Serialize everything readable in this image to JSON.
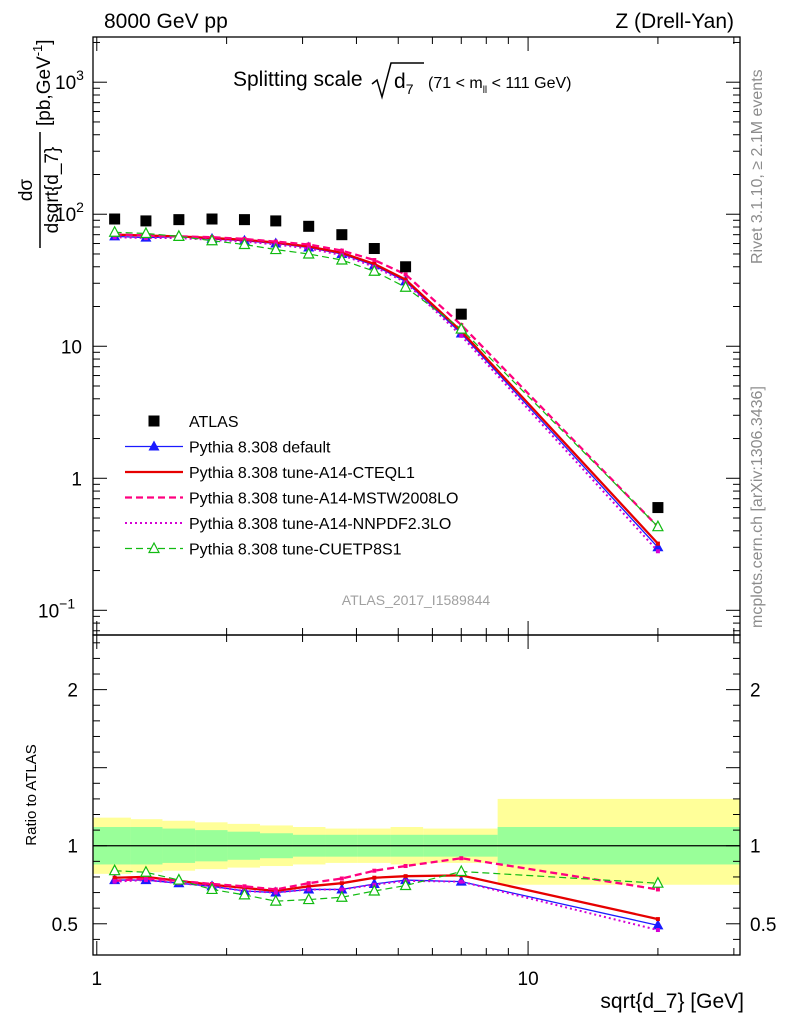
{
  "header": {
    "left": "8000 GeV pp",
    "right": "Z (Drell-Yan)"
  },
  "side_labels": {
    "top": "Rivet 3.1.10, ≥ 2.1M events",
    "bottom": "mcplots.cern.ch [arXiv:1306.3436]"
  },
  "chart_data": {
    "type": "line",
    "title": {
      "main": "Splitting scale",
      "symbol": "d",
      "subscript": "7",
      "suffix": "(71 < m",
      "suffix_sub": "ll",
      "suffix_end": " < 111 GeV)"
    },
    "watermark": "ATLAS_2017_I1589844",
    "xlabel": "sqrt{d_7} [GeV]",
    "ylabel_main": {
      "numerator": "dσ",
      "denominator": "dsqrt{d_7}",
      "units": "[pb,GeV",
      "units_exp": "-1",
      "units_end": "]"
    },
    "ylabel_ratio": "Ratio to ATLAS",
    "x_scale": "log",
    "xlim": [
      0.98,
      31
    ],
    "main_y_scale": "log",
    "main_ylim": [
      0.065,
      2200
    ],
    "ratio_ylim": [
      0.3,
      2.35
    ],
    "x_ticks": [
      {
        "v": 1,
        "label": "1"
      },
      {
        "v": 10,
        "label": "10"
      }
    ],
    "main_y_ticks": [
      {
        "v": 0.1,
        "base": "10",
        "exp": "−1"
      },
      {
        "v": 1,
        "base": "1",
        "exp": ""
      },
      {
        "v": 10,
        "base": "10",
        "exp": ""
      },
      {
        "v": 100,
        "base": "10",
        "exp": "2"
      },
      {
        "v": 1000,
        "base": "10",
        "exp": "3"
      }
    ],
    "ratio_y_ticks": [
      {
        "v": 0.5,
        "label": "0.5"
      },
      {
        "v": 1,
        "label": "1"
      },
      {
        "v": 2,
        "label": "2"
      }
    ],
    "x": [
      1.1,
      1.3,
      1.55,
      1.85,
      2.2,
      2.6,
      3.1,
      3.7,
      4.4,
      5.2,
      7.0,
      20.0
    ],
    "x_edges": [
      0.98,
      1.2,
      1.42,
      1.69,
      2.01,
      2.39,
      2.85,
      3.39,
      4.03,
      4.8,
      5.71,
      8.5,
      31
    ],
    "atlas": [
      92,
      89,
      91,
      92,
      91,
      89,
      81,
      70,
      55,
      40,
      17.5,
      0.6
    ],
    "band_inner": [
      [
        0.88,
        1.12
      ],
      [
        0.88,
        1.12
      ],
      [
        0.89,
        1.11
      ],
      [
        0.9,
        1.1
      ],
      [
        0.91,
        1.09
      ],
      [
        0.92,
        1.08
      ],
      [
        0.93,
        1.07
      ],
      [
        0.93,
        1.07
      ],
      [
        0.93,
        1.07
      ],
      [
        0.93,
        1.07
      ],
      [
        0.93,
        1.07
      ],
      [
        0.88,
        1.12
      ]
    ],
    "band_outer": [
      [
        0.82,
        1.18
      ],
      [
        0.83,
        1.17
      ],
      [
        0.84,
        1.16
      ],
      [
        0.85,
        1.15
      ],
      [
        0.86,
        1.14
      ],
      [
        0.87,
        1.13
      ],
      [
        0.88,
        1.12
      ],
      [
        0.89,
        1.11
      ],
      [
        0.89,
        1.11
      ],
      [
        0.88,
        1.12
      ],
      [
        0.89,
        1.11
      ],
      [
        0.75,
        1.3
      ]
    ],
    "series": [
      {
        "name": "ATLAS",
        "color": "#000000",
        "style": "points",
        "marker": "square",
        "ratio": [
          1,
          1,
          1,
          1,
          1,
          1,
          1,
          1,
          1,
          1,
          1,
          1
        ]
      },
      {
        "name": "Pythia 8.308 default",
        "color": "#1a1aff",
        "style": "solid",
        "width": 1.3,
        "marker": "triangle",
        "values": [
          68,
          66.5,
          67.5,
          65,
          63,
          60,
          56,
          50,
          41,
          31,
          12.5,
          0.3
        ],
        "ratio": [
          0.78,
          0.78,
          0.76,
          0.74,
          0.71,
          0.7,
          0.72,
          0.72,
          0.755,
          0.78,
          0.77,
          0.49
        ]
      },
      {
        "name": "Pythia 8.308 tune-A14-CTEQL1",
        "color": "#e60000",
        "style": "solid",
        "width": 2.3,
        "marker": "none",
        "values": [
          70,
          69,
          68,
          66,
          64,
          61,
          57,
          51,
          42,
          32,
          13,
          0.32
        ],
        "ratio": [
          0.795,
          0.8,
          0.775,
          0.75,
          0.73,
          0.71,
          0.74,
          0.76,
          0.795,
          0.805,
          0.81,
          0.53
        ]
      },
      {
        "name": "Pythia 8.308 tune-A14-MSTW2008LO",
        "color": "#ff007f",
        "style": "dashed",
        "width": 2.3,
        "marker": "none",
        "values": [
          70.5,
          69,
          68,
          67,
          65,
          62,
          59,
          53,
          45,
          35,
          14.5,
          0.43
        ],
        "ratio": [
          0.775,
          0.79,
          0.775,
          0.755,
          0.74,
          0.72,
          0.76,
          0.79,
          0.84,
          0.87,
          0.92,
          0.72
        ]
      },
      {
        "name": "Pythia 8.308 tune-A14-NNPDF2.3LO",
        "color": "#d400d4",
        "style": "dotted",
        "width": 2,
        "marker": "none",
        "values": [
          67,
          66,
          66,
          64,
          62,
          59,
          55,
          49,
          40,
          30.5,
          12,
          0.28
        ],
        "ratio": [
          0.77,
          0.78,
          0.76,
          0.74,
          0.71,
          0.7,
          0.72,
          0.72,
          0.75,
          0.775,
          0.77,
          0.46
        ]
      },
      {
        "name": "Pythia 8.308 tune-CUETP8S1",
        "color": "#11bb11",
        "style": "dashed",
        "width": 1.2,
        "marker": "open-triangle",
        "values": [
          73,
          71.5,
          68,
          63,
          59,
          54,
          50,
          45,
          37,
          28,
          13.5,
          0.43
        ],
        "ratio": [
          0.84,
          0.83,
          0.78,
          0.72,
          0.685,
          0.645,
          0.655,
          0.67,
          0.71,
          0.745,
          0.835,
          0.76
        ]
      }
    ]
  }
}
